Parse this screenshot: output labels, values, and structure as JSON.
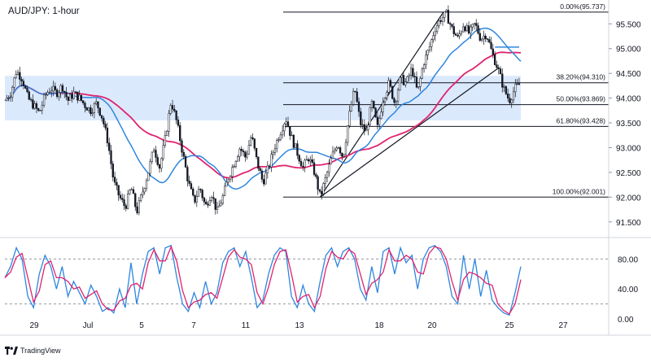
{
  "chart_data": {
    "type": "candlestick",
    "title": "AUD/JPY: 1-hour",
    "price_axis": {
      "ticks": [
        "95.500",
        "95.000",
        "94.500",
        "94.000",
        "93.500",
        "93.000",
        "92.500",
        "92.000",
        "91.500"
      ],
      "range": [
        91.25,
        95.85
      ]
    },
    "time_axis": {
      "ticks": [
        "29",
        "Jul",
        "5",
        "7",
        "11",
        "13",
        "18",
        "20",
        "25",
        "27"
      ]
    },
    "oscillator": {
      "ticks": [
        "80.00",
        "40.00",
        "0.00"
      ],
      "range": [
        0,
        100
      ],
      "levels": [
        80,
        20
      ]
    },
    "fibonacci": [
      {
        "label": "0.00%(95.737)",
        "value": 95.737
      },
      {
        "label": "38.20%(94.310)",
        "value": 94.31
      },
      {
        "label": "50.00%(93.869)",
        "value": 93.869
      },
      {
        "label": "61.80%(93.428)",
        "value": 93.428
      },
      {
        "label": "100.00%(92.001)",
        "value": 92.001
      }
    ],
    "zone": [
      93.55,
      94.45
    ],
    "price_path": [
      [
        0,
        93.95
      ],
      [
        2,
        94.1
      ],
      [
        4,
        94.55
      ],
      [
        6,
        94.4
      ],
      [
        8,
        94.0
      ],
      [
        10,
        93.85
      ],
      [
        12,
        93.7
      ],
      [
        14,
        94.05
      ],
      [
        16,
        94.2
      ],
      [
        18,
        94.1
      ],
      [
        20,
        94.25
      ],
      [
        22,
        93.95
      ],
      [
        24,
        94.1
      ],
      [
        26,
        94.0
      ],
      [
        28,
        93.85
      ],
      [
        30,
        93.75
      ],
      [
        32,
        93.9
      ],
      [
        34,
        93.6
      ],
      [
        36,
        93.1
      ],
      [
        38,
        92.3
      ],
      [
        40,
        92.0
      ],
      [
        42,
        91.8
      ],
      [
        44,
        92.2
      ],
      [
        46,
        91.7
      ],
      [
        48,
        92.1
      ],
      [
        50,
        92.5
      ],
      [
        52,
        93.0
      ],
      [
        54,
        92.6
      ],
      [
        56,
        93.2
      ],
      [
        58,
        93.95
      ],
      [
        60,
        93.5
      ],
      [
        62,
        92.9
      ],
      [
        64,
        92.3
      ],
      [
        66,
        91.9
      ],
      [
        68,
        92.2
      ],
      [
        70,
        91.8
      ],
      [
        72,
        92.1
      ],
      [
        74,
        91.7
      ],
      [
        76,
        92.0
      ],
      [
        78,
        92.4
      ],
      [
        80,
        92.7
      ],
      [
        82,
        93.0
      ],
      [
        84,
        92.8
      ],
      [
        86,
        93.25
      ],
      [
        88,
        92.7
      ],
      [
        90,
        92.3
      ],
      [
        92,
        92.6
      ],
      [
        94,
        93.0
      ],
      [
        96,
        93.3
      ],
      [
        98,
        93.6
      ],
      [
        100,
        93.2
      ],
      [
        102,
        92.9
      ],
      [
        104,
        92.6
      ],
      [
        106,
        92.8
      ],
      [
        108,
        92.5
      ],
      [
        110,
        92.0
      ],
      [
        112,
        92.4
      ],
      [
        114,
        92.8
      ],
      [
        116,
        93.1
      ],
      [
        118,
        92.8
      ],
      [
        120,
        93.6
      ],
      [
        122,
        94.2
      ],
      [
        124,
        93.5
      ],
      [
        126,
        93.3
      ],
      [
        128,
        93.9
      ],
      [
        130,
        93.4
      ],
      [
        132,
        94.0
      ],
      [
        134,
        94.3
      ],
      [
        136,
        93.9
      ],
      [
        138,
        94.4
      ],
      [
        140,
        94.3
      ],
      [
        142,
        94.6
      ],
      [
        144,
        94.1
      ],
      [
        146,
        94.7
      ],
      [
        148,
        95.0
      ],
      [
        150,
        95.4
      ],
      [
        152,
        95.6
      ],
      [
        154,
        95.7
      ],
      [
        156,
        95.4
      ],
      [
        158,
        95.2
      ],
      [
        160,
        95.5
      ],
      [
        162,
        95.3
      ],
      [
        164,
        95.5
      ],
      [
        166,
        95.2
      ],
      [
        168,
        95.3
      ],
      [
        170,
        94.9
      ],
      [
        172,
        94.6
      ],
      [
        174,
        94.2
      ],
      [
        176,
        93.95
      ],
      [
        178,
        94.2
      ],
      [
        180,
        94.3
      ]
    ],
    "stoch_k": [
      [
        0,
        55
      ],
      [
        2,
        70
      ],
      [
        4,
        95
      ],
      [
        6,
        80
      ],
      [
        8,
        30
      ],
      [
        10,
        15
      ],
      [
        12,
        60
      ],
      [
        14,
        85
      ],
      [
        16,
        70
      ],
      [
        18,
        40
      ],
      [
        20,
        70
      ],
      [
        22,
        30
      ],
      [
        24,
        50
      ],
      [
        26,
        35
      ],
      [
        28,
        20
      ],
      [
        30,
        45
      ],
      [
        32,
        30
      ],
      [
        34,
        10
      ],
      [
        36,
        15
      ],
      [
        38,
        8
      ],
      [
        40,
        40
      ],
      [
        42,
        15
      ],
      [
        44,
        75
      ],
      [
        46,
        20
      ],
      [
        48,
        60
      ],
      [
        50,
        90
      ],
      [
        52,
        95
      ],
      [
        54,
        60
      ],
      [
        56,
        95
      ],
      [
        58,
        98
      ],
      [
        60,
        55
      ],
      [
        62,
        20
      ],
      [
        64,
        10
      ],
      [
        66,
        35
      ],
      [
        68,
        15
      ],
      [
        70,
        50
      ],
      [
        72,
        20
      ],
      [
        74,
        35
      ],
      [
        76,
        75
      ],
      [
        78,
        90
      ],
      [
        80,
        95
      ],
      [
        82,
        70
      ],
      [
        84,
        90
      ],
      [
        86,
        55
      ],
      [
        88,
        15
      ],
      [
        90,
        25
      ],
      [
        92,
        60
      ],
      [
        94,
        85
      ],
      [
        96,
        95
      ],
      [
        98,
        90
      ],
      [
        100,
        30
      ],
      [
        102,
        15
      ],
      [
        104,
        45
      ],
      [
        106,
        20
      ],
      [
        108,
        10
      ],
      [
        110,
        50
      ],
      [
        112,
        85
      ],
      [
        114,
        95
      ],
      [
        116,
        70
      ],
      [
        118,
        90
      ],
      [
        120,
        95
      ],
      [
        122,
        80
      ],
      [
        124,
        40
      ],
      [
        126,
        25
      ],
      [
        128,
        70
      ],
      [
        130,
        35
      ],
      [
        132,
        90
      ],
      [
        134,
        95
      ],
      [
        136,
        60
      ],
      [
        138,
        95
      ],
      [
        140,
        75
      ],
      [
        142,
        85
      ],
      [
        144,
        40
      ],
      [
        146,
        80
      ],
      [
        148,
        95
      ],
      [
        150,
        98
      ],
      [
        152,
        90
      ],
      [
        154,
        70
      ],
      [
        156,
        30
      ],
      [
        158,
        20
      ],
      [
        160,
        85
      ],
      [
        162,
        40
      ],
      [
        164,
        80
      ],
      [
        166,
        30
      ],
      [
        168,
        65
      ],
      [
        170,
        25
      ],
      [
        172,
        15
      ],
      [
        174,
        8
      ],
      [
        176,
        5
      ],
      [
        178,
        35
      ],
      [
        180,
        70
      ]
    ]
  }
}
